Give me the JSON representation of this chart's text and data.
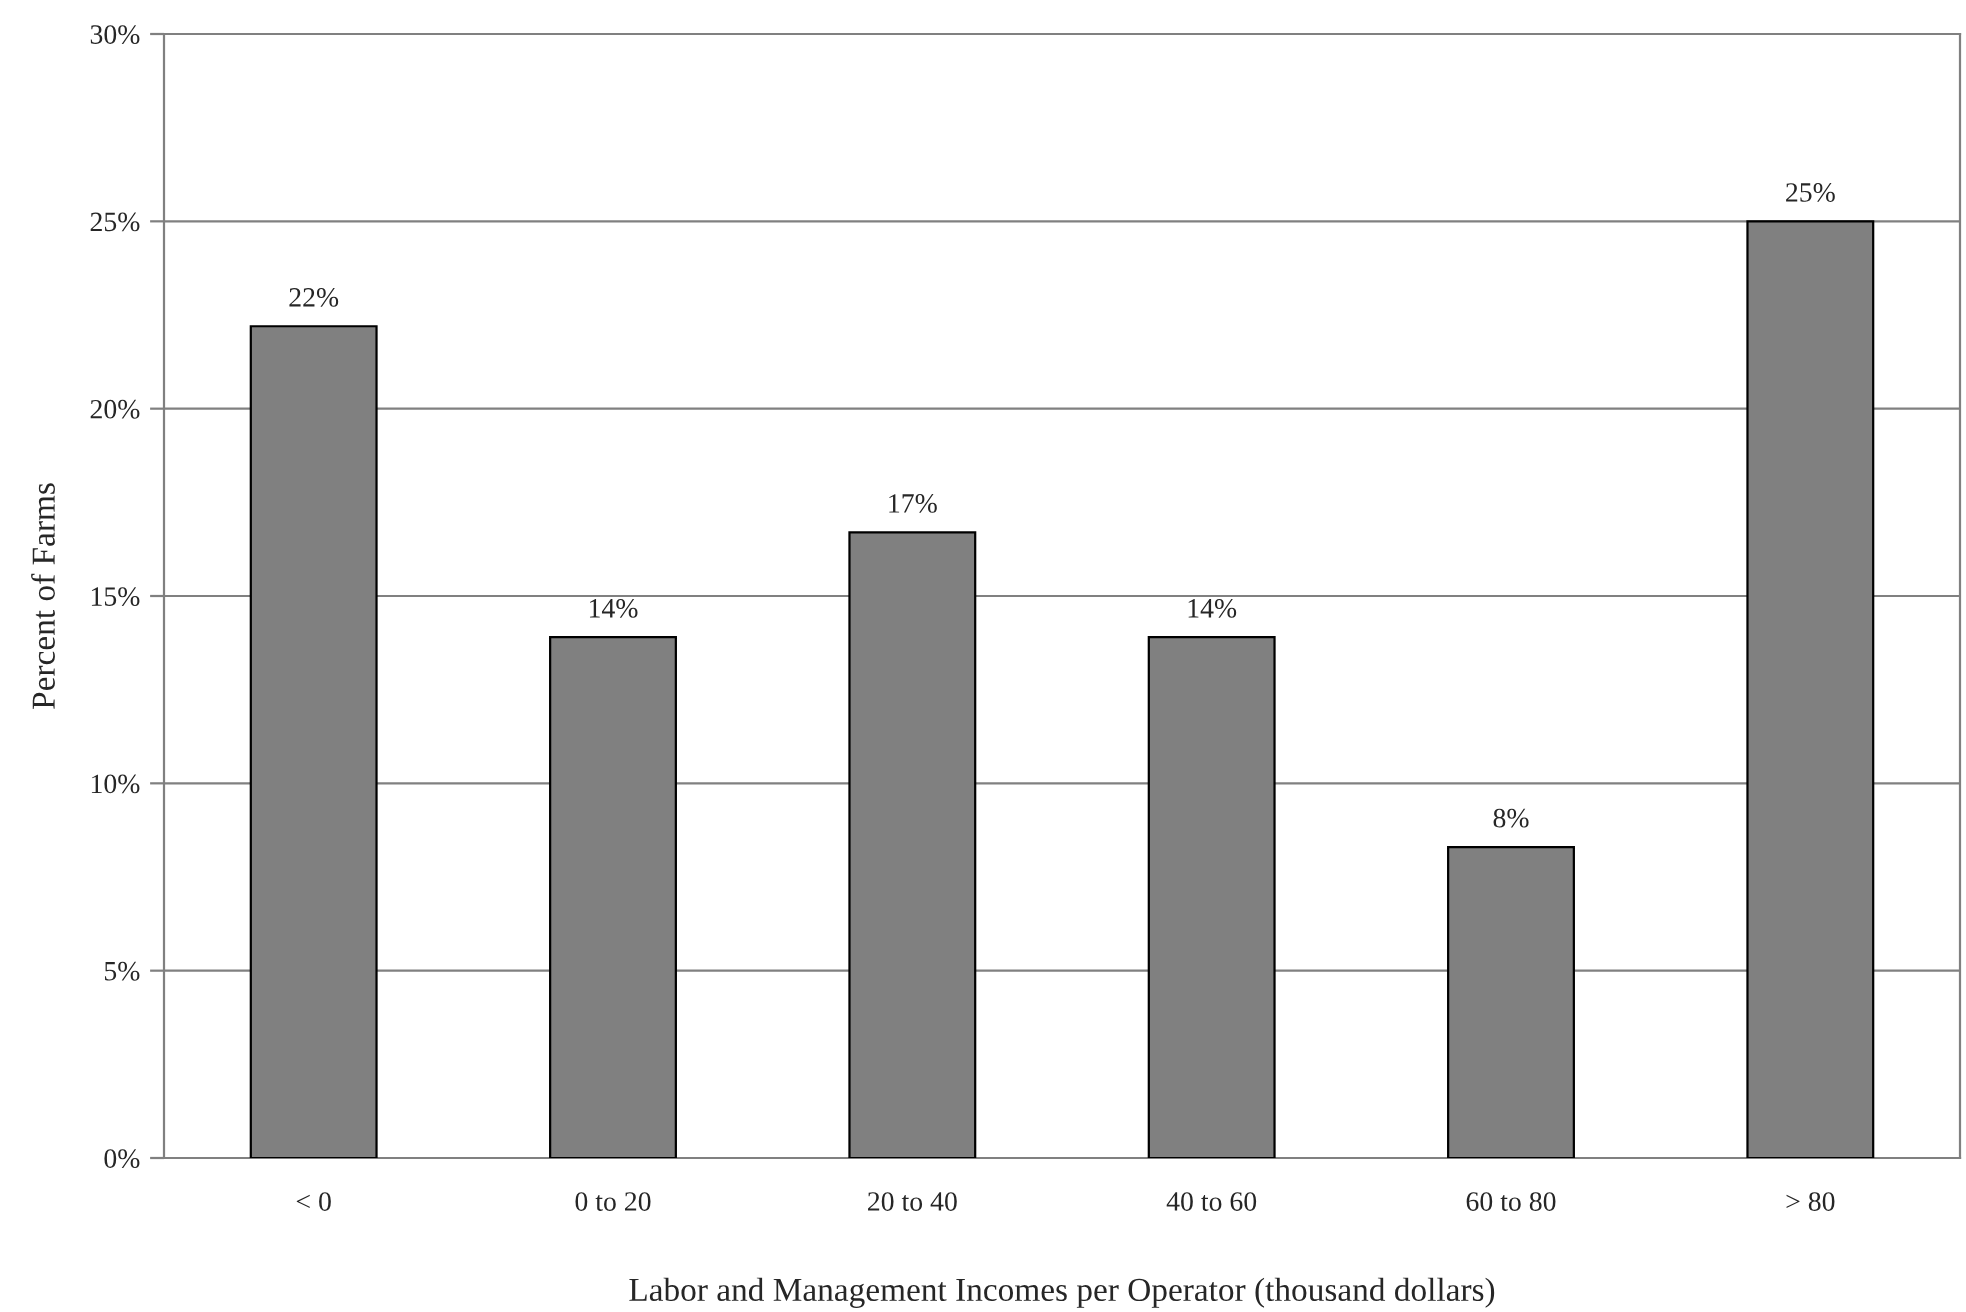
{
  "chart_data": {
    "type": "bar",
    "xlabel": "Labor and Management Incomes per Operator (thousand dollars)",
    "ylabel": "Percent of Farms",
    "categories": [
      "< 0",
      "0 to 20",
      "20 to 40",
      "40 to 60",
      "60 to 80",
      "> 80"
    ],
    "values": [
      22.2,
      13.9,
      16.7,
      13.9,
      8.3,
      25.0
    ],
    "value_labels": [
      "22%",
      "14%",
      "17%",
      "14%",
      "8%",
      "25%"
    ],
    "color": "#808080",
    "ylim": [
      0,
      30
    ],
    "yticks": [
      {
        "value": 0,
        "label": "0%"
      },
      {
        "value": 5,
        "label": "5%"
      },
      {
        "value": 10,
        "label": "10%"
      },
      {
        "value": 15,
        "label": "15%"
      },
      {
        "value": 20,
        "label": "20%"
      },
      {
        "value": 25,
        "label": "25%"
      },
      {
        "value": 30,
        "label": "30%"
      }
    ],
    "grid": "y"
  }
}
